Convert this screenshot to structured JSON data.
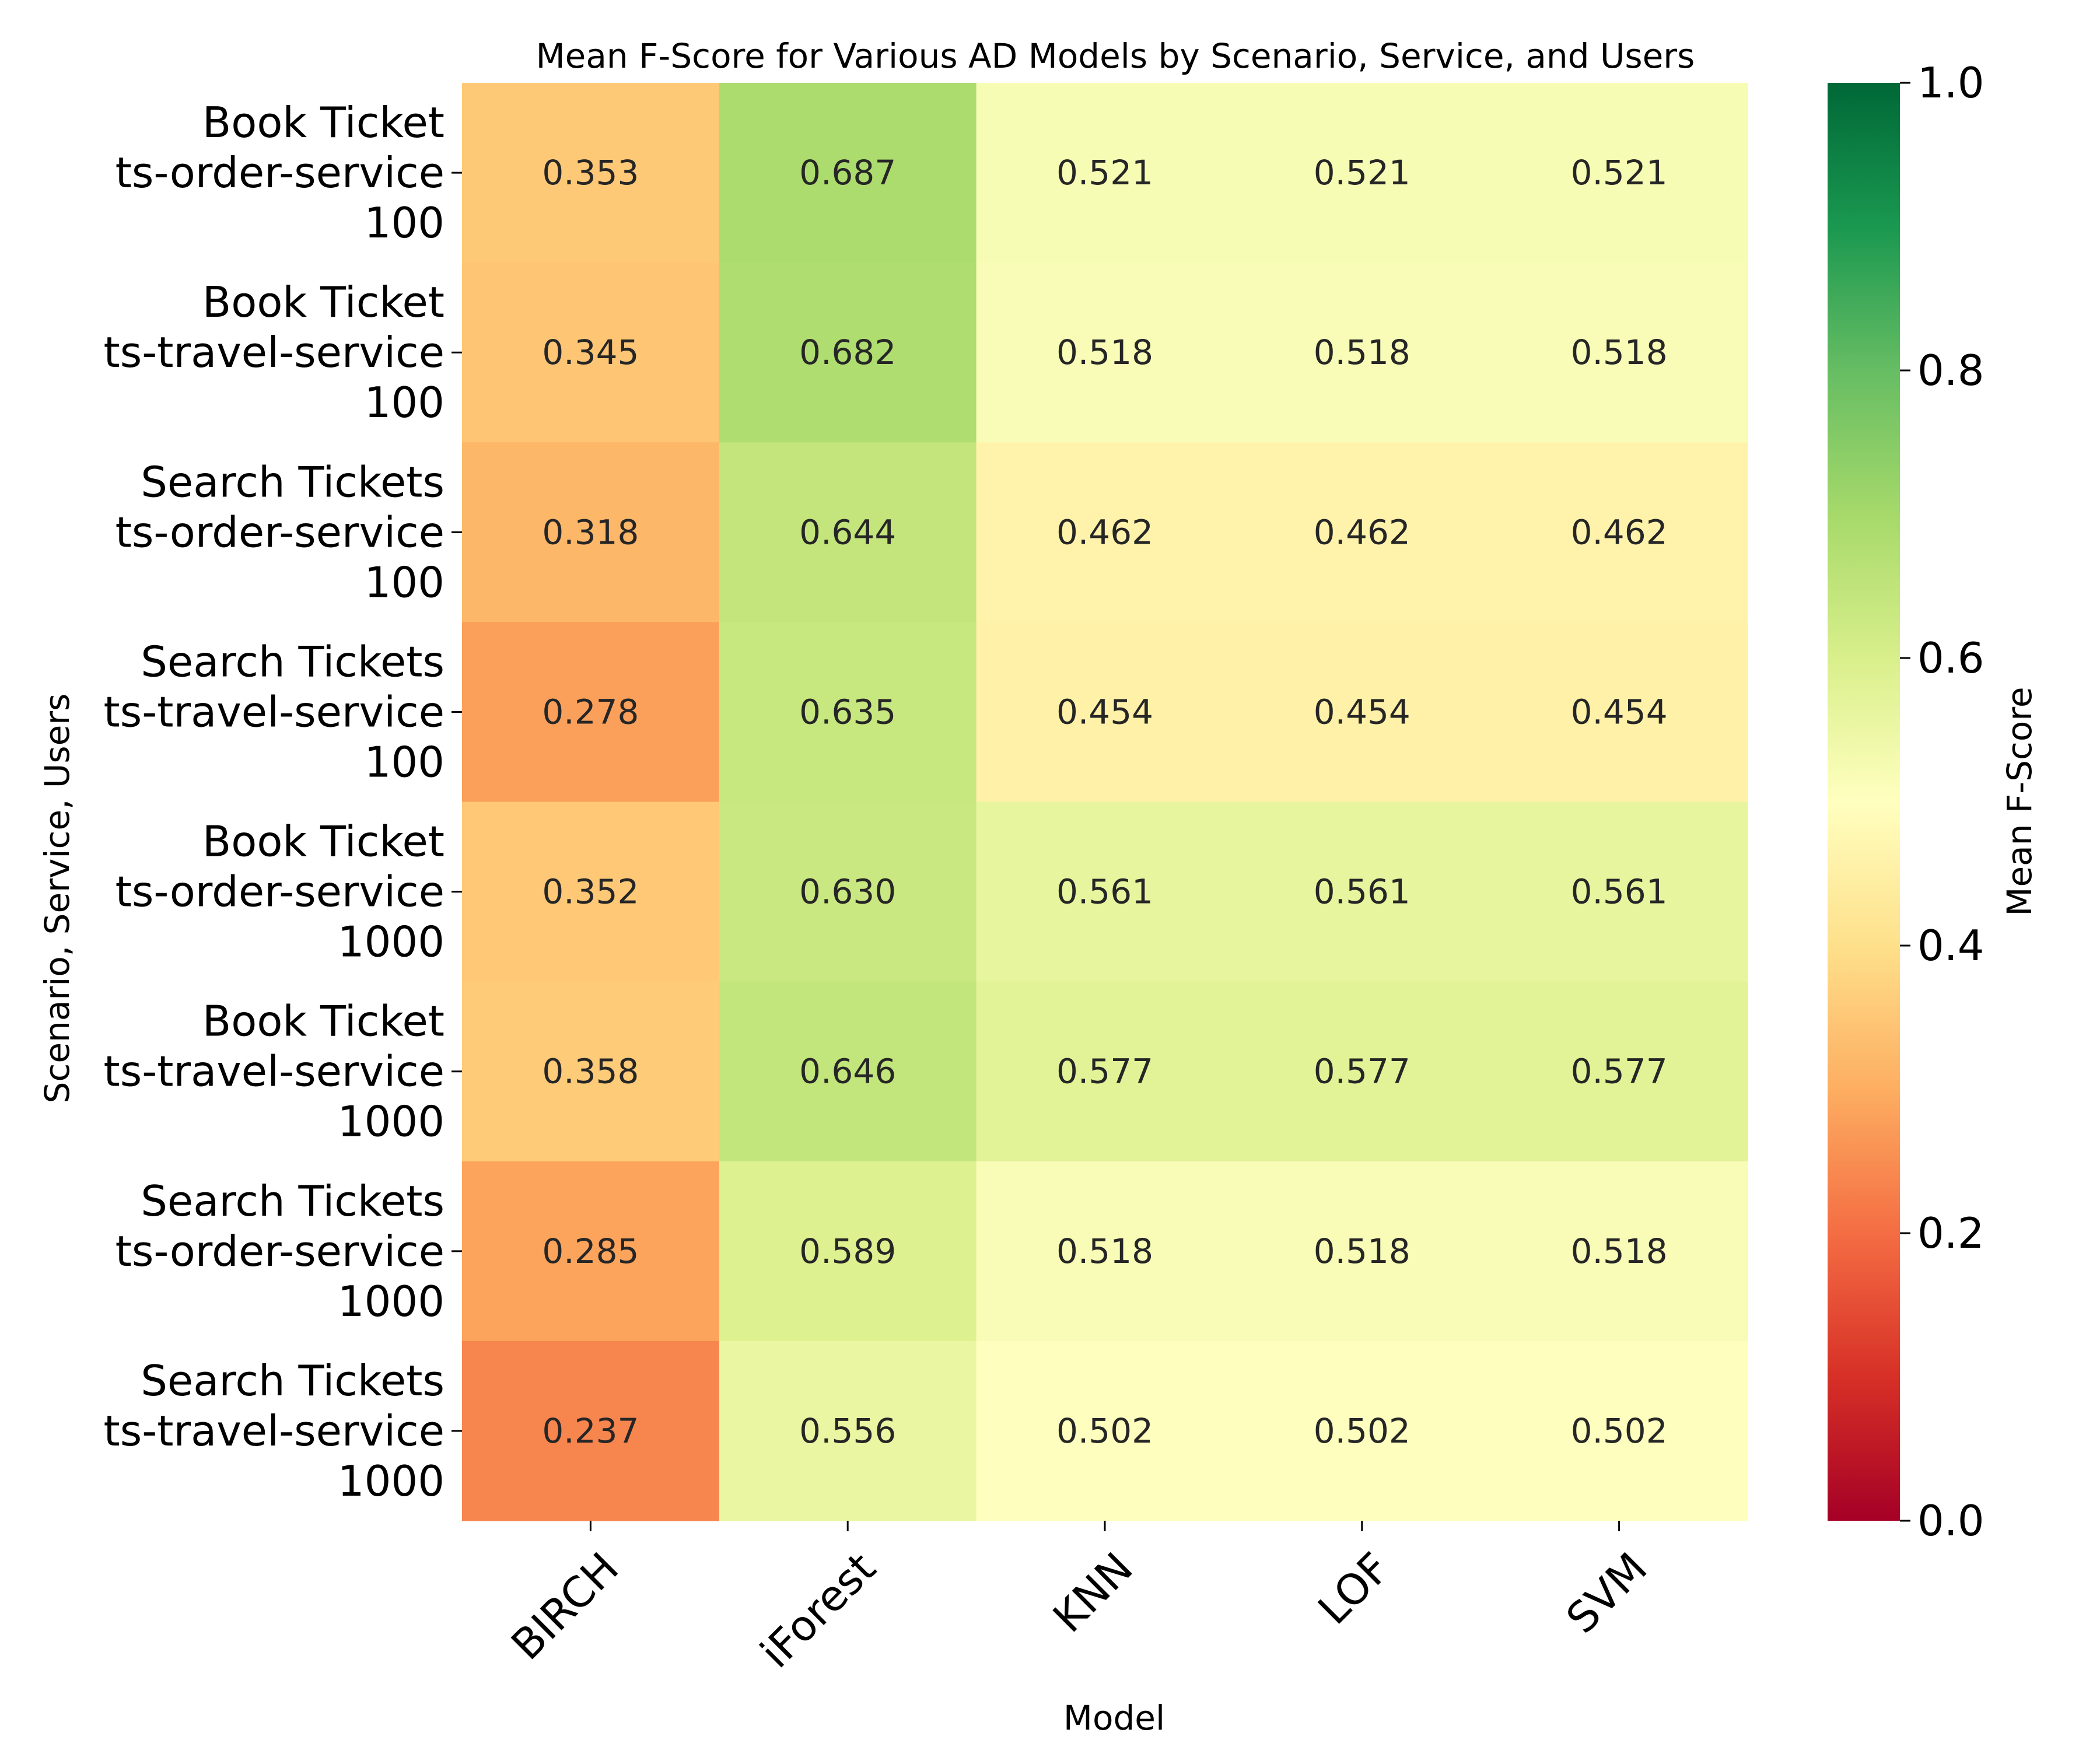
{
  "chart_data": {
    "type": "heatmap",
    "title": "Mean F-Score for Various AD Models by Scenario, Service, and Users",
    "xlabel": "Model",
    "ylabel": "Scenario, Service, Users",
    "x_categories": [
      "BIRCH",
      "iForest",
      "KNN",
      "LOF",
      "SVM"
    ],
    "y_categories": [
      [
        "Book Ticket",
        "ts-order-service",
        "100"
      ],
      [
        "Book Ticket",
        "ts-travel-service",
        "100"
      ],
      [
        "Search Tickets",
        "ts-order-service",
        "100"
      ],
      [
        "Search Tickets",
        "ts-travel-service",
        "100"
      ],
      [
        "Book Ticket",
        "ts-order-service",
        "1000"
      ],
      [
        "Book Ticket",
        "ts-travel-service",
        "1000"
      ],
      [
        "Search Tickets",
        "ts-order-service",
        "1000"
      ],
      [
        "Search Tickets",
        "ts-travel-service",
        "1000"
      ]
    ],
    "values": [
      [
        0.353,
        0.687,
        0.521,
        0.521,
        0.521
      ],
      [
        0.345,
        0.682,
        0.518,
        0.518,
        0.518
      ],
      [
        0.318,
        0.644,
        0.462,
        0.462,
        0.462
      ],
      [
        0.278,
        0.635,
        0.454,
        0.454,
        0.454
      ],
      [
        0.352,
        0.63,
        0.561,
        0.561,
        0.561
      ],
      [
        0.358,
        0.646,
        0.577,
        0.577,
        0.577
      ],
      [
        0.285,
        0.589,
        0.518,
        0.518,
        0.518
      ],
      [
        0.237,
        0.556,
        0.502,
        0.502,
        0.502
      ]
    ],
    "colormap": "RdYlGn",
    "vmin": 0.0,
    "vmax": 1.0,
    "colorbar": {
      "label": "Mean F-Score",
      "ticks": [
        "0.0",
        "0.2",
        "0.4",
        "0.6",
        "0.8",
        "1.0"
      ]
    }
  }
}
